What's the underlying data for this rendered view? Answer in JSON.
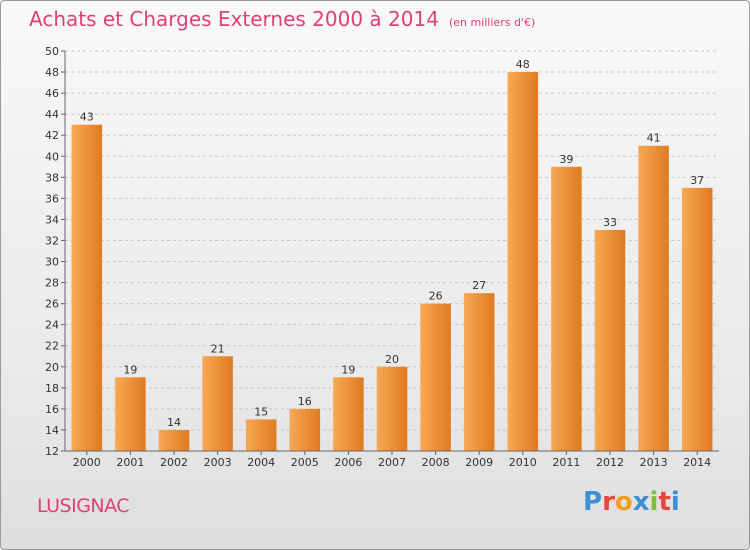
{
  "header": {
    "title": "Achats et Charges Externes 2000 à 2014",
    "subtitle": "(en milliers d'€)"
  },
  "footer": {
    "town": "LUSIGNAC",
    "logo_letters": [
      "P",
      "r",
      "o",
      "x",
      "i",
      "t",
      "i"
    ],
    "logo_colors": [
      "#3d8fd6",
      "#e8463a",
      "#f0a020",
      "#3d8fd6",
      "#7cbf3a",
      "#e8463a",
      "#3d8fd6"
    ]
  },
  "colors": {
    "bar_light": "#f7a955",
    "bar_dark": "#e07a20",
    "text": "#e0407a"
  },
  "chart_data": {
    "type": "bar",
    "title": "Achats et Charges Externes 2000 à 2014",
    "subtitle": "(en milliers d'€)",
    "categories": [
      "2000",
      "2001",
      "2002",
      "2003",
      "2004",
      "2005",
      "2006",
      "2007",
      "2008",
      "2009",
      "2010",
      "2011",
      "2012",
      "2013",
      "2014"
    ],
    "values": [
      43,
      19,
      14,
      21,
      15,
      16,
      19,
      20,
      26,
      27,
      48,
      39,
      33,
      41,
      37
    ],
    "ylim": [
      12,
      50
    ],
    "yticks": [
      12,
      14,
      16,
      18,
      20,
      22,
      24,
      26,
      28,
      30,
      32,
      34,
      36,
      38,
      40,
      42,
      44,
      46,
      48,
      50
    ],
    "grid": true,
    "legend": "none"
  }
}
